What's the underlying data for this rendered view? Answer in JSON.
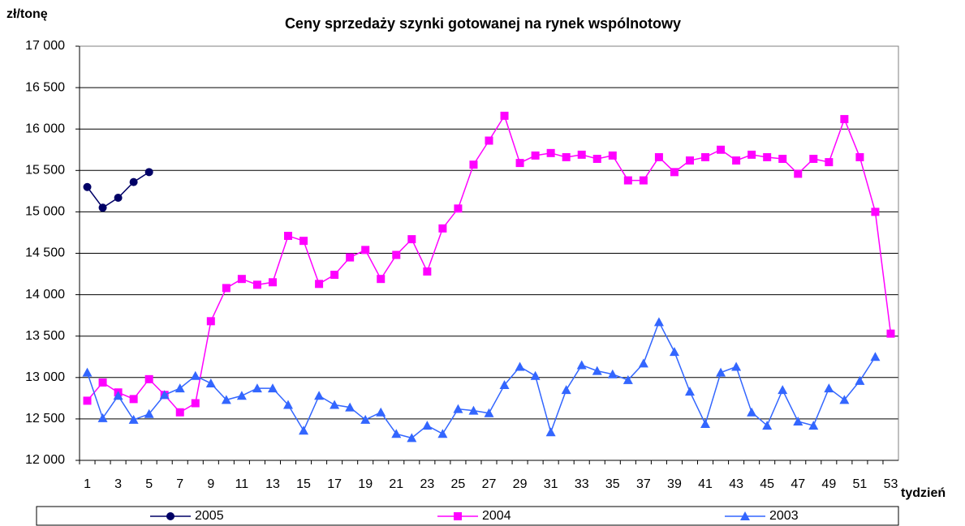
{
  "chart_data": {
    "type": "line",
    "title": "Ceny sprzedaży szynki gotowanej na rynek wspólnotowy",
    "ylabel": "zł/tonę",
    "xlabel": "tydzień",
    "categories": [
      1,
      null,
      3,
      null,
      5,
      null,
      7,
      null,
      9,
      null,
      11,
      null,
      13,
      null,
      15,
      null,
      17,
      null,
      19,
      null,
      21,
      null,
      23,
      null,
      25,
      null,
      27,
      null,
      29,
      null,
      31,
      null,
      33,
      null,
      35,
      null,
      37,
      null,
      39,
      null,
      41,
      null,
      43,
      null,
      45,
      null,
      47,
      null,
      49,
      null,
      51,
      null,
      53
    ],
    "series": [
      {
        "name": "2005",
        "color": "#000066",
        "marker": "circle",
        "values": [
          15300,
          15050,
          15170,
          15360,
          15480,
          null,
          null,
          null,
          null,
          null,
          null,
          null,
          null,
          null,
          null,
          null,
          null,
          null,
          null,
          null,
          null,
          null,
          null,
          null,
          null,
          null,
          null,
          null,
          null,
          null,
          null,
          null,
          null,
          null,
          null,
          null,
          null,
          null,
          null,
          null,
          null,
          null,
          null,
          null,
          null,
          null,
          null,
          null,
          null,
          null,
          null,
          null,
          null
        ]
      },
      {
        "name": "2004",
        "color": "#ff00ff",
        "marker": "square",
        "values": [
          12720,
          12940,
          12820,
          12740,
          12980,
          12790,
          12580,
          12690,
          13680,
          14080,
          14190,
          14120,
          14150,
          14710,
          14650,
          14130,
          14240,
          14450,
          14540,
          14190,
          14480,
          14670,
          14280,
          14800,
          15040,
          15570,
          15860,
          16160,
          15590,
          15680,
          15710,
          15660,
          15690,
          15640,
          15680,
          15380,
          15380,
          15660,
          15480,
          15620,
          15660,
          15750,
          15620,
          15690,
          15660,
          15640,
          15460,
          15640,
          15600,
          16120,
          15660,
          15000,
          13530
        ]
      },
      {
        "name": "2003",
        "color": "#3366ff",
        "marker": "triangle",
        "values": [
          13060,
          12510,
          12780,
          12490,
          12560,
          12790,
          12870,
          13020,
          12930,
          12730,
          12780,
          12870,
          12870,
          12670,
          12360,
          12780,
          12670,
          12640,
          12490,
          12580,
          12320,
          12270,
          12420,
          12320,
          12620,
          12600,
          12570,
          12910,
          13130,
          13020,
          12340,
          12850,
          13150,
          13080,
          13040,
          12970,
          13170,
          13670,
          13310,
          12830,
          12440,
          13060,
          13130,
          12580,
          12420,
          12850,
          12470,
          12420,
          12870,
          12730,
          12960,
          13250,
          null
        ]
      }
    ],
    "ylim": [
      12000,
      17000
    ],
    "yticks": [
      {
        "value": 12000,
        "label": "12 000"
      },
      {
        "value": 12500,
        "label": "12 500"
      },
      {
        "value": 13000,
        "label": "13 000"
      },
      {
        "value": 13500,
        "label": "13 500"
      },
      {
        "value": 14000,
        "label": "14 000"
      },
      {
        "value": 14500,
        "label": "14 500"
      },
      {
        "value": 15000,
        "label": "15 000"
      },
      {
        "value": 15500,
        "label": "15 500"
      },
      {
        "value": 16000,
        "label": "16 000"
      },
      {
        "value": 16500,
        "label": "16 500"
      },
      {
        "value": 17000,
        "label": "17 000"
      }
    ],
    "grid": true,
    "legend": "bottom"
  }
}
